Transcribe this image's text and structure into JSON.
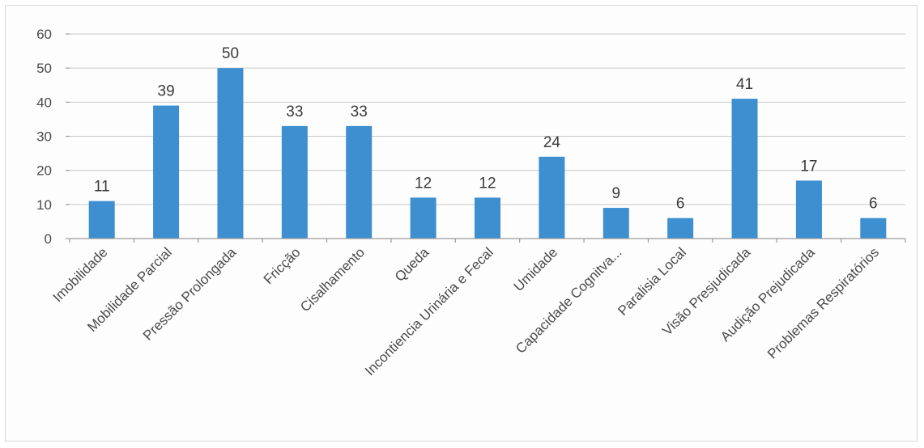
{
  "chart_data": {
    "type": "bar",
    "categories": [
      "Imobilidade",
      "Mobilidade Parcial",
      "Pressão Prolongada",
      "Fricção",
      "Cisalhamento",
      "Queda",
      "Incontiencia Urinária e Fecal",
      "Umidade",
      "Capacidade Cognitva...",
      "Paralisia Local",
      "Visão Presjudicada",
      "Audição Prejudicada",
      "Problemas Respiratórios"
    ],
    "values": [
      11,
      39,
      50,
      33,
      33,
      12,
      12,
      24,
      9,
      6,
      41,
      17,
      6
    ],
    "ylim": [
      0,
      60
    ],
    "yticks": [
      0,
      10,
      20,
      30,
      40,
      50,
      60
    ],
    "grid": true,
    "legend": "none",
    "bar_color": "#3d8fd0"
  }
}
